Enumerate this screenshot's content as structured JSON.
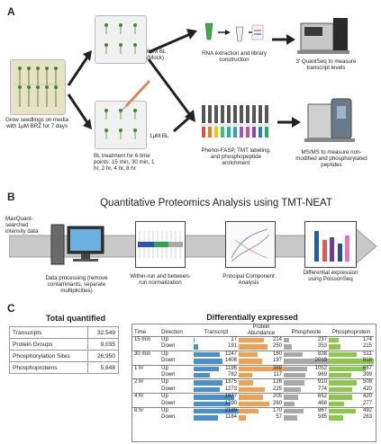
{
  "panels": {
    "a": "A",
    "b": "B",
    "c": "C"
  },
  "section_a": {
    "grow_label": "Grow seedlings on media with 1μM BRZ for 7 days",
    "mock_label": "0μM BL (Mock)",
    "bl_label": "1μM BL",
    "bl_treatment": "BL treatment for 6 time points: 15 min, 30 min, 1 hr, 2 hr, 4 hr, 8 hr",
    "rna_label": "RNA extraction and library construction",
    "quantseq_label": "3' QuantSeq to measure transcript levels",
    "phenol_label": "Phenol-FASP, TMT labeling, and phosphopeptide enrichment",
    "msms_label": "MS/MS to measure non-modified and phosphorylated peptides"
  },
  "section_b": {
    "title": "Quantitative Proteomics Analysis using TMT-NEAT",
    "input_label": "MaxQuant-searched intensity data",
    "processing_label": "Data processing (remove contaminants, separate multiplicities)",
    "normalization_label": "Within-run and between-run normalization",
    "pca_label": "Principal Component Analysis",
    "diffexp_label": "Differential expression using PoissonSeq",
    "bar_colors": [
      "#1f5fa8",
      "#e05a5a",
      "#6a3d9a",
      "#2a4f9a",
      "#e377c2"
    ],
    "bar_values": [
      0.85,
      0.6,
      0.68,
      0.5,
      0.73
    ]
  },
  "total_quantified": {
    "title": "Total quantified",
    "rows": [
      {
        "label": "Transcripts",
        "value": "32,549"
      },
      {
        "label": "Protein Groups",
        "value": "9,035"
      },
      {
        "label": "Phosphorylation Sites",
        "value": "26,950"
      },
      {
        "label": "Phosphoproteins",
        "value": "5,648"
      }
    ]
  },
  "diff_expressed": {
    "title": "Differentially expressed",
    "headers": {
      "time": "Time",
      "direction": "Direction",
      "transcript": "Transcript",
      "protein": "Protein Abundance",
      "phosphosite": "Phosphosite",
      "phosphoprotein": "Phosphoprotein"
    },
    "groups": [
      {
        "time": "15 min",
        "rows": [
          {
            "dir": "Up",
            "transcript": 17,
            "protein": 214,
            "phosphosite": 237,
            "phosphoprotein": 174
          },
          {
            "dir": "Down",
            "transcript": 191,
            "protein": 250,
            "phosphosite": 353,
            "phosphoprotein": 215
          }
        ]
      },
      {
        "time": "30 min",
        "rows": [
          {
            "dir": "Up",
            "transcript": 1247,
            "protein": 160,
            "phosphosite": 838,
            "phosphoprotein": 511
          },
          {
            "dir": "Down",
            "transcript": 1408,
            "protein": 197,
            "phosphosite": 2019,
            "phosphoprotein": 818
          }
        ]
      },
      {
        "time": "1 hr",
        "rows": [
          {
            "dir": "Up",
            "transcript": 1196,
            "protein": 389,
            "phosphosite": 1052,
            "phosphoprotein": 667
          },
          {
            "dir": "Down",
            "transcript": 782,
            "protein": 117,
            "phosphosite": 969,
            "phosphoprotein": 399
          }
        ]
      },
      {
        "time": "2 hr",
        "rows": [
          {
            "dir": "Up",
            "transcript": 1375,
            "protein": 126,
            "phosphosite": 910,
            "phosphoprotein": 509
          },
          {
            "dir": "Down",
            "transcript": 1273,
            "protein": 225,
            "phosphosite": 774,
            "phosphoprotein": 420
          }
        ]
      },
      {
        "time": "4 hr",
        "rows": [
          {
            "dir": "Up",
            "transcript": 1977,
            "protein": 205,
            "phosphosite": 652,
            "phosphoprotein": 420
          },
          {
            "dir": "Down",
            "transcript": 1790,
            "protein": 260,
            "phosphosite": 468,
            "phosphoprotein": 277
          }
        ]
      },
      {
        "time": "8 hr",
        "rows": [
          {
            "dir": "Up",
            "transcript": 2189,
            "protein": 170,
            "phosphosite": 867,
            "phosphoprotein": 492
          },
          {
            "dir": "Down",
            "transcript": 1184,
            "protein": 57,
            "phosphosite": 585,
            "phosphoprotein": 263
          }
        ]
      }
    ],
    "colors": {
      "transcript": "#4a8fd0",
      "protein": "#f0a050",
      "phosphosite": "#a8a8a8",
      "phosphoprotein": "#8cc84b"
    },
    "max": {
      "transcript": 2189,
      "protein": 389,
      "phosphosite": 2019,
      "phosphoprotein": 818
    }
  }
}
